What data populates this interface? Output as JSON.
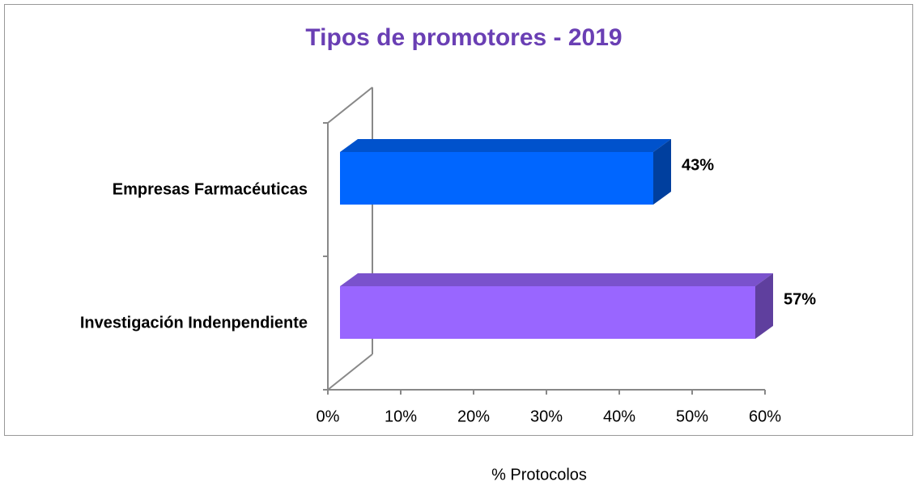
{
  "chart_data": {
    "type": "bar3d_horizontal",
    "title": "Tipos de promotores  - 2019",
    "categories": [
      "Empresas Farmacéuticas",
      "Investigación Indenpendiente"
    ],
    "values": [
      43,
      57
    ],
    "value_labels": [
      "43%",
      "57%"
    ],
    "colors": [
      "#0066ff",
      "#9966ff"
    ],
    "xlim": [
      0,
      60
    ],
    "xticks": [
      {
        "value": 0,
        "label": "0%"
      },
      {
        "value": 10,
        "label": "10%"
      },
      {
        "value": 20,
        "label": "20%"
      },
      {
        "value": 30,
        "label": "30%"
      },
      {
        "value": 40,
        "label": "40%"
      },
      {
        "value": 50,
        "label": "50%"
      },
      {
        "value": 60,
        "label": "60%"
      }
    ],
    "x_label": "% Protocolos"
  }
}
